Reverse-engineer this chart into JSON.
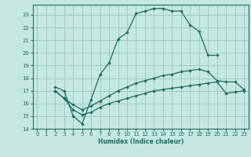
{
  "xlabel": "Humidex (Indice chaleur)",
  "bg_color": "#c6e8e2",
  "grid_color": "#a0c8c0",
  "line_color": "#1a6b60",
  "xlim": [
    -0.5,
    23.5
  ],
  "ylim": [
    14,
    23.8
  ],
  "yticks": [
    14,
    15,
    16,
    17,
    18,
    19,
    20,
    21,
    22,
    23
  ],
  "xticks": [
    0,
    1,
    2,
    3,
    4,
    5,
    6,
    7,
    8,
    9,
    10,
    11,
    12,
    13,
    14,
    15,
    16,
    17,
    18,
    19,
    20,
    21,
    22,
    23
  ],
  "curve1_x": [
    2,
    3,
    4,
    5,
    6,
    7,
    8,
    9,
    10,
    11,
    12,
    13,
    14,
    15,
    16,
    17,
    18,
    19,
    20
  ],
  "curve1_y": [
    17.3,
    17.0,
    15.0,
    14.4,
    16.3,
    18.3,
    19.2,
    21.1,
    21.6,
    23.1,
    23.3,
    23.5,
    23.5,
    23.3,
    23.3,
    22.2,
    21.7,
    19.8,
    19.8
  ],
  "curve2_x": [
    2,
    3,
    4,
    5,
    6,
    7,
    8,
    9,
    10,
    11,
    12,
    13,
    14,
    15,
    16,
    17,
    18,
    19,
    20,
    21,
    22,
    23
  ],
  "curve2_y": [
    17.0,
    16.4,
    15.9,
    15.5,
    15.8,
    16.2,
    16.6,
    17.0,
    17.3,
    17.6,
    17.8,
    18.0,
    18.2,
    18.3,
    18.5,
    18.6,
    18.7,
    18.5,
    17.8,
    17.7,
    17.7,
    17.1
  ],
  "curve3_x": [
    2,
    3,
    4,
    5,
    6,
    7,
    8,
    9,
    10,
    11,
    12,
    13,
    14,
    15,
    16,
    17,
    18,
    19,
    20,
    21,
    22,
    23
  ],
  "curve3_y": [
    17.0,
    16.4,
    15.5,
    15.1,
    15.3,
    15.7,
    16.0,
    16.2,
    16.4,
    16.6,
    16.8,
    17.0,
    17.1,
    17.2,
    17.3,
    17.4,
    17.5,
    17.6,
    17.7,
    16.8,
    16.9,
    17.0
  ]
}
